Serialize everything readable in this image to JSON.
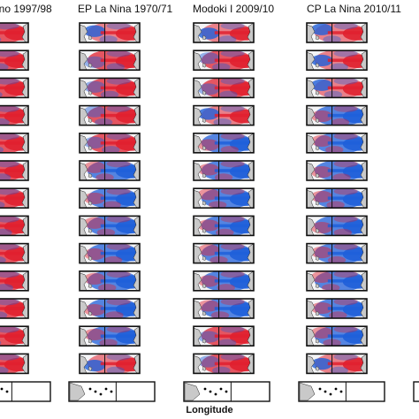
{
  "figure": {
    "column_titles": [
      "ino 1997/98",
      "EP La Nina 1970/71",
      "Modoki I 2009/10",
      "CP La Nina 2010/11"
    ],
    "x_axis_label": "Longitude",
    "colors": {
      "warm": "#e0202f",
      "cold": "#1f5fd9",
      "land": "#c9c9c9",
      "frame": "#111111"
    },
    "map_rows": 13,
    "columns": [
      {
        "title": "ino 1997/98",
        "pattern_by_row": [
          "warm",
          "warm",
          "warm",
          "warm",
          "warm",
          "warm",
          "warm",
          "warm",
          "warm",
          "warm",
          "warm",
          "warm",
          "warm"
        ]
      },
      {
        "title": "EP La Nina 1970/71",
        "pattern_by_row": [
          "mixed",
          "warm",
          "warm",
          "warm",
          "warm",
          "cold",
          "cold",
          "cold",
          "cold",
          "cold",
          "cold",
          "cold",
          "mixed"
        ]
      },
      {
        "title": "Modoki I 2009/10",
        "pattern_by_row": [
          "mixed",
          "warm",
          "warm",
          "mixed",
          "cold",
          "cold",
          "cold",
          "cold",
          "cold",
          "cold",
          "cold",
          "warm",
          "warm"
        ]
      },
      {
        "title": "CP La Nina 2010/11",
        "pattern_by_row": [
          "mixed",
          "mixed",
          "mixed",
          "cold",
          "cold",
          "cold",
          "cold",
          "cold",
          "cold",
          "cold",
          "cold",
          "cold",
          "mixed"
        ]
      }
    ]
  }
}
